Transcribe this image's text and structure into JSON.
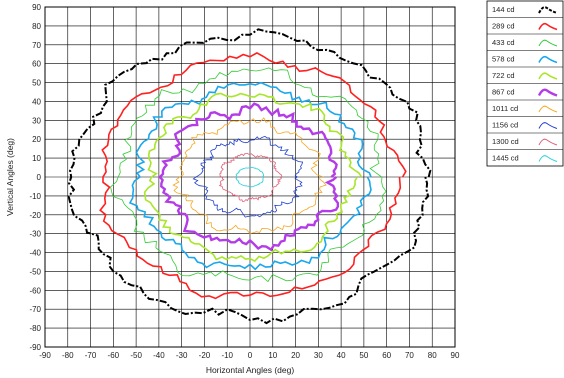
{
  "chart_data": {
    "type": "contour",
    "xlabel": "Horizontal Angles (deg)",
    "ylabel": "Vertical Angles (deg)",
    "xlim": [
      -90,
      90
    ],
    "ylim": [
      -90,
      90
    ],
    "x_ticks": [
      -90,
      -80,
      -70,
      -60,
      -50,
      -40,
      -30,
      -20,
      -10,
      0,
      10,
      20,
      30,
      40,
      50,
      60,
      70,
      80,
      90
    ],
    "y_ticks": [
      90,
      80,
      70,
      60,
      50,
      40,
      30,
      20,
      10,
      0,
      -10,
      -20,
      -30,
      -40,
      -50,
      -60,
      -70,
      -80,
      -90
    ],
    "grid": true,
    "legend_position": "top-right",
    "series": [
      {
        "name": "144 cd",
        "color": "#000000",
        "style": "dash-dot",
        "radius_x": 78,
        "radius_y": 75,
        "noise": 2
      },
      {
        "name": "289 cd",
        "color": "#ff2020",
        "style": "solid",
        "radius_x": 65,
        "radius_y": 63,
        "noise": 2
      },
      {
        "name": "433 cd",
        "color": "#33cc33",
        "style": "thin",
        "radius_x": 58,
        "radius_y": 55,
        "noise": 3
      },
      {
        "name": "578 cd",
        "color": "#1aa7ec",
        "style": "solid",
        "radius_x": 51,
        "radius_y": 48,
        "noise": 3
      },
      {
        "name": "722 cd",
        "color": "#a8e62a",
        "style": "solid",
        "radius_x": 45,
        "radius_y": 43,
        "noise": 3
      },
      {
        "name": "867 cd",
        "color": "#b43ce8",
        "style": "thick",
        "radius_x": 38,
        "radius_y": 36,
        "noise": 4
      },
      {
        "name": "1011 cd",
        "color": "#f5a623",
        "style": "thin",
        "radius_x": 31,
        "radius_y": 29,
        "noise": 4
      },
      {
        "name": "1156 cd",
        "color": "#2040d0",
        "style": "thin",
        "radius_x": 22,
        "radius_y": 20,
        "noise": 5
      },
      {
        "name": "1300 cd",
        "color": "#e0607a",
        "style": "thin",
        "radius_x": 13,
        "radius_y": 12,
        "noise": 4
      },
      {
        "name": "1445 cd",
        "color": "#2ad0e0",
        "style": "thin",
        "radius_x": 6,
        "radius_y": 5,
        "noise": 2
      }
    ]
  }
}
